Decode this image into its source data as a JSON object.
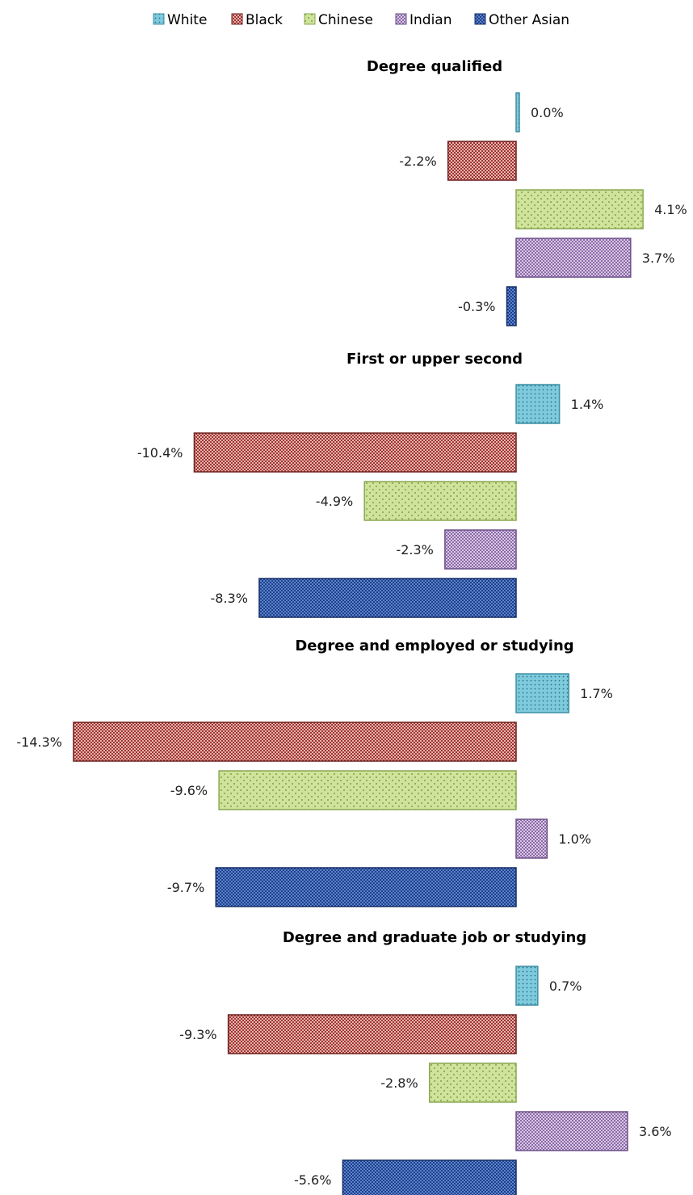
{
  "chart_data": {
    "type": "bar",
    "orientation": "horizontal",
    "legend_position": "top",
    "grid": false,
    "xlim": [
      -14.3,
      5
    ],
    "groups": [
      "Degree qualified",
      "First or upper second",
      "Degree and employed or studying",
      "Degree and graduate job or studying"
    ],
    "series": [
      {
        "name": "White",
        "color": "#7ecbdd",
        "pattern": "fine-dots",
        "values": [
          0.0,
          1.4,
          1.7,
          0.7
        ],
        "labels": [
          "0.0%",
          "1.4%",
          "1.7%",
          "0.7%"
        ]
      },
      {
        "name": "Black",
        "color": "#a8403d",
        "pattern": "checker",
        "values": [
          -2.2,
          -10.4,
          -14.3,
          -9.3
        ],
        "labels": [
          "-2.2%",
          "-10.4%",
          "-14.3%",
          "-9.3%"
        ]
      },
      {
        "name": "Chinese",
        "color": "#c5db8c",
        "pattern": "sparse-dots",
        "values": [
          4.1,
          -4.9,
          -9.6,
          -2.8
        ],
        "labels": [
          "4.1%",
          "-4.9%",
          "-9.6%",
          "-2.8%"
        ]
      },
      {
        "name": "Indian",
        "color": "#a487bd",
        "pattern": "checker",
        "values": [
          3.7,
          -2.3,
          1.0,
          3.6
        ],
        "labels": [
          "3.7%",
          "-2.3%",
          "1.0%",
          "3.6%"
        ]
      },
      {
        "name": "Other Asian",
        "color": "#2d56a8",
        "pattern": "checker-dark",
        "values": [
          -0.3,
          -8.3,
          -9.7,
          -5.6
        ],
        "labels": [
          "-0.3%",
          "-8.3%",
          "-9.7%",
          "-5.6%"
        ]
      }
    ]
  }
}
